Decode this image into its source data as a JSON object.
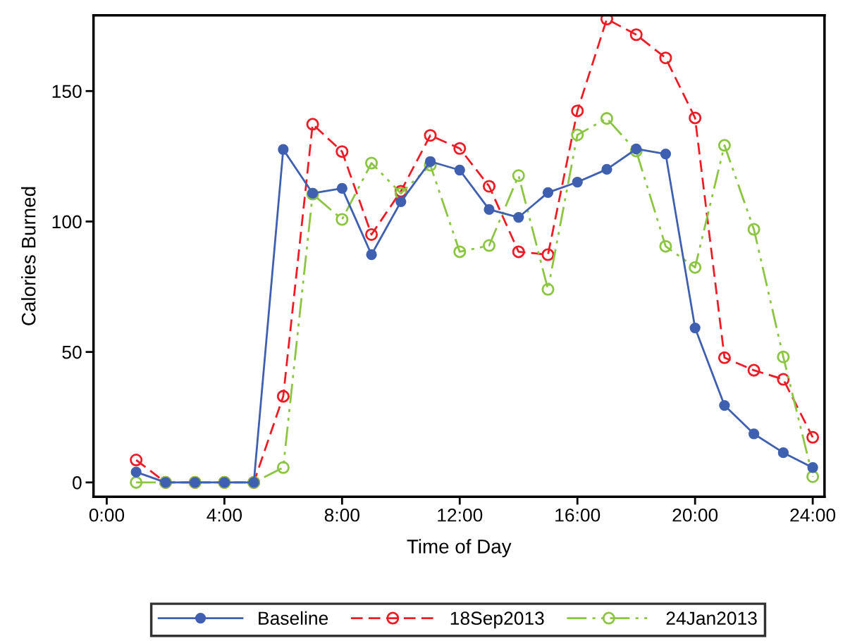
{
  "chart_data": {
    "type": "line",
    "xlabel": "Time of Day",
    "ylabel": "Calories Burned",
    "x": [
      1,
      2,
      3,
      4,
      5,
      6,
      7,
      8,
      9,
      10,
      11,
      12,
      13,
      14,
      15,
      16,
      17,
      18,
      19,
      20,
      21,
      22,
      23,
      24
    ],
    "series": [
      {
        "name": "Baseline",
        "color": "#3f60b0",
        "line_style": "solid",
        "values": [
          4,
          0,
          0,
          0,
          0,
          127.6,
          110.8,
          112.7,
          87.3,
          107.6,
          123,
          119.7,
          104.6,
          101.6,
          111.1,
          115.1,
          120,
          127.8,
          125.9,
          59.2,
          29.5,
          18.6,
          11.4,
          5.7
        ]
      },
      {
        "name": "18Sep2013",
        "color": "#ee1c25",
        "line_style": "dashed",
        "values": [
          8.6,
          0,
          0,
          0,
          0,
          33,
          137.3,
          126.8,
          95,
          111.6,
          133,
          128,
          113.5,
          88.4,
          87.3,
          142.4,
          177.6,
          171.6,
          162.7,
          139.7,
          47.8,
          43,
          39.5,
          17.3
        ]
      },
      {
        "name": "24Jan2013",
        "color": "#8cc541",
        "line_style": "dashdot",
        "values": [
          0,
          0,
          0,
          0,
          0,
          5.7,
          110.5,
          100.8,
          122.4,
          110.8,
          121.6,
          88.4,
          90.8,
          117.6,
          74,
          133.2,
          139.5,
          127,
          90.5,
          82.4,
          129.2,
          97,
          48.1,
          2.2
        ]
      }
    ],
    "xlim": [
      -0.45,
      24.4
    ],
    "ylim": [
      -5.5,
      179
    ],
    "xticks": [
      {
        "value": 0,
        "label": "0:00"
      },
      {
        "value": 4,
        "label": "4:00"
      },
      {
        "value": 8,
        "label": "8:00"
      },
      {
        "value": 12,
        "label": "12:00"
      },
      {
        "value": 16,
        "label": "16:00"
      },
      {
        "value": 20,
        "label": "20:00"
      },
      {
        "value": 24,
        "label": "24:00"
      }
    ],
    "yticks": [
      0,
      50,
      100,
      150
    ],
    "marker": "circle",
    "grid": false,
    "legend": "bottom"
  }
}
